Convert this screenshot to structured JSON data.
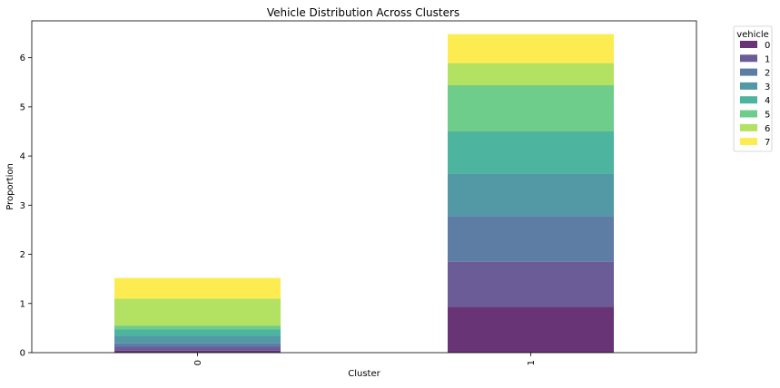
{
  "chart_data": {
    "type": "bar",
    "stacked": true,
    "title": "Vehicle Distribution Across Clusters",
    "xlabel": "Cluster",
    "ylabel": "Proportion",
    "categories": [
      "0",
      "1"
    ],
    "ylim": [
      0,
      6.75
    ],
    "yticks": [
      "0",
      "1",
      "2",
      "3",
      "4",
      "5",
      "6"
    ],
    "grid": false,
    "legend": {
      "title": "vehicle",
      "placement": "outside-top-right"
    },
    "series": [
      {
        "name": "0",
        "color": "#440154",
        "values": [
          0.04,
          0.93
        ]
      },
      {
        "name": "1",
        "color": "#46337e",
        "values": [
          0.08,
          0.92
        ]
      },
      {
        "name": "2",
        "color": "#365c8d",
        "values": [
          0.07,
          0.93
        ]
      },
      {
        "name": "3",
        "color": "#277f8e",
        "values": [
          0.15,
          0.86
        ]
      },
      {
        "name": "4",
        "color": "#1fa187",
        "values": [
          0.13,
          0.86
        ]
      },
      {
        "name": "5",
        "color": "#4ac16d",
        "values": [
          0.08,
          0.94
        ]
      },
      {
        "name": "6",
        "color": "#a0da39",
        "values": [
          0.55,
          0.45
        ]
      },
      {
        "name": "7",
        "color": "#fde725",
        "values": [
          0.42,
          0.59
        ]
      }
    ]
  }
}
